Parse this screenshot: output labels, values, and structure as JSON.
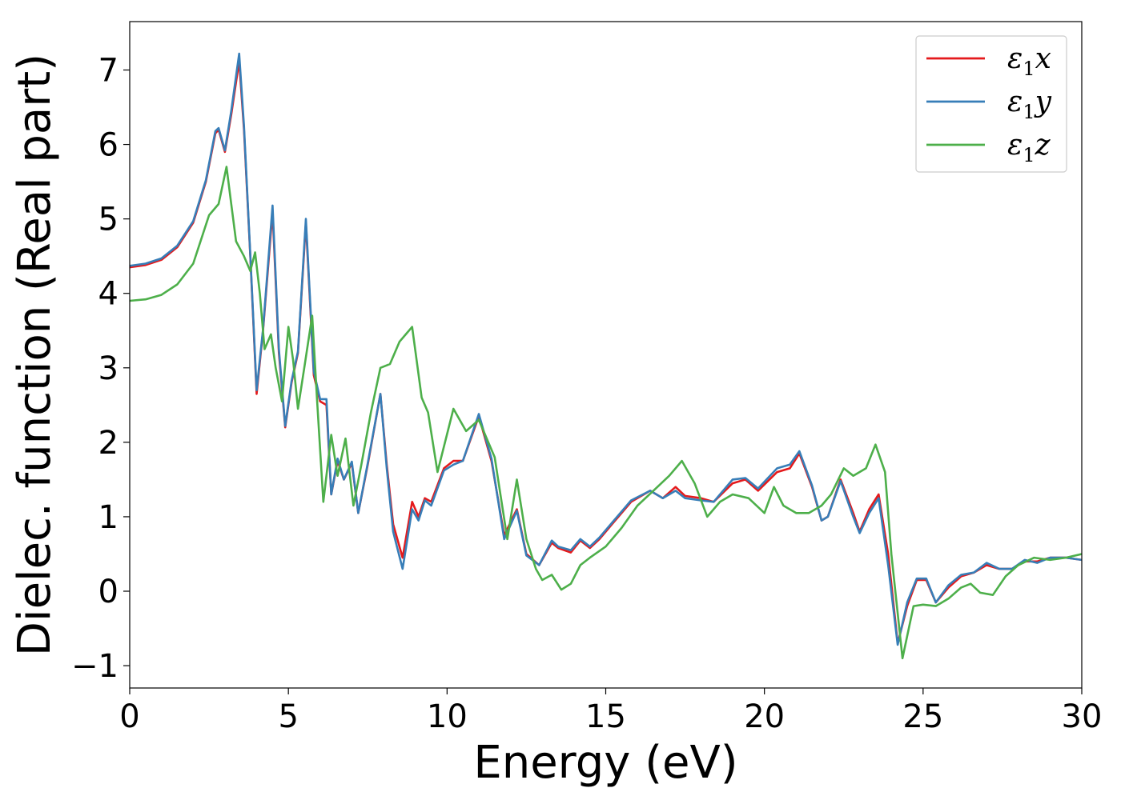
{
  "chart_data": {
    "type": "line",
    "title": "",
    "xlabel": "Energy (eV)",
    "ylabel": "Dielec. function (Real part)",
    "xlim": [
      0,
      30
    ],
    "ylim": [
      -1.3,
      7.65
    ],
    "xticks": [
      0,
      5,
      10,
      15,
      20,
      25,
      30
    ],
    "xtick_labels": [
      "0",
      "5",
      "10",
      "15",
      "20",
      "25",
      "30"
    ],
    "yticks": [
      -1,
      0,
      1,
      2,
      3,
      4,
      5,
      6,
      7
    ],
    "ytick_labels": [
      "−1",
      "0",
      "1",
      "2",
      "3",
      "4",
      "5",
      "6",
      "7"
    ],
    "grid": false,
    "legend_position": "top-right",
    "series": [
      {
        "name": "ε₁x",
        "legend_base": "ε",
        "legend_sub": "1",
        "legend_suffix": "x",
        "color": "#e41a1c",
        "points": [
          [
            0,
            4.35
          ],
          [
            0.5,
            4.38
          ],
          [
            1.0,
            4.45
          ],
          [
            1.5,
            4.62
          ],
          [
            2.0,
            4.95
          ],
          [
            2.4,
            5.5
          ],
          [
            2.7,
            6.15
          ],
          [
            2.8,
            6.2
          ],
          [
            3.0,
            5.9
          ],
          [
            3.2,
            6.4
          ],
          [
            3.45,
            7.12
          ],
          [
            3.6,
            6.2
          ],
          [
            3.8,
            4.5
          ],
          [
            4.0,
            2.65
          ],
          [
            4.2,
            3.5
          ],
          [
            4.5,
            5.1
          ],
          [
            4.7,
            3.2
          ],
          [
            4.9,
            2.2
          ],
          [
            5.1,
            2.8
          ],
          [
            5.3,
            3.2
          ],
          [
            5.55,
            4.95
          ],
          [
            5.8,
            2.9
          ],
          [
            6.0,
            2.55
          ],
          [
            6.2,
            2.5
          ],
          [
            6.35,
            1.3
          ],
          [
            6.55,
            1.75
          ],
          [
            6.75,
            1.5
          ],
          [
            7.0,
            1.72
          ],
          [
            7.2,
            1.05
          ],
          [
            7.5,
            1.7
          ],
          [
            7.9,
            2.65
          ],
          [
            8.1,
            1.7
          ],
          [
            8.3,
            0.9
          ],
          [
            8.6,
            0.45
          ],
          [
            8.9,
            1.2
          ],
          [
            9.1,
            1.0
          ],
          [
            9.3,
            1.25
          ],
          [
            9.5,
            1.2
          ],
          [
            9.9,
            1.65
          ],
          [
            10.2,
            1.75
          ],
          [
            10.5,
            1.75
          ],
          [
            11.0,
            2.35
          ],
          [
            11.4,
            1.75
          ],
          [
            11.8,
            0.75
          ],
          [
            12.2,
            1.1
          ],
          [
            12.5,
            0.5
          ],
          [
            12.9,
            0.35
          ],
          [
            13.3,
            0.65
          ],
          [
            13.5,
            0.58
          ],
          [
            13.9,
            0.52
          ],
          [
            14.2,
            0.68
          ],
          [
            14.5,
            0.58
          ],
          [
            14.8,
            0.7
          ],
          [
            15.2,
            0.9
          ],
          [
            15.8,
            1.2
          ],
          [
            16.4,
            1.35
          ],
          [
            16.8,
            1.25
          ],
          [
            17.2,
            1.4
          ],
          [
            17.5,
            1.28
          ],
          [
            18.0,
            1.25
          ],
          [
            18.4,
            1.2
          ],
          [
            19.0,
            1.45
          ],
          [
            19.4,
            1.5
          ],
          [
            19.8,
            1.35
          ],
          [
            20.4,
            1.6
          ],
          [
            20.8,
            1.65
          ],
          [
            21.1,
            1.85
          ],
          [
            21.5,
            1.4
          ],
          [
            21.8,
            0.95
          ],
          [
            22.0,
            1.0
          ],
          [
            22.4,
            1.5
          ],
          [
            22.8,
            1.05
          ],
          [
            23.0,
            0.8
          ],
          [
            23.3,
            1.1
          ],
          [
            23.6,
            1.3
          ],
          [
            23.9,
            0.5
          ],
          [
            24.2,
            -0.7
          ],
          [
            24.5,
            -0.2
          ],
          [
            24.8,
            0.15
          ],
          [
            25.1,
            0.15
          ],
          [
            25.4,
            -0.15
          ],
          [
            25.8,
            0.05
          ],
          [
            26.2,
            0.2
          ],
          [
            26.6,
            0.25
          ],
          [
            27.0,
            0.35
          ],
          [
            27.4,
            0.3
          ],
          [
            27.8,
            0.3
          ],
          [
            28.2,
            0.4
          ],
          [
            28.6,
            0.4
          ],
          [
            29.0,
            0.45
          ],
          [
            29.5,
            0.45
          ],
          [
            30.0,
            0.42
          ]
        ]
      },
      {
        "name": "ε₁y",
        "legend_base": "ε",
        "legend_sub": "1",
        "legend_suffix": "y",
        "color": "#377eb8",
        "points": [
          [
            0,
            4.37
          ],
          [
            0.5,
            4.4
          ],
          [
            1.0,
            4.47
          ],
          [
            1.5,
            4.64
          ],
          [
            2.0,
            4.97
          ],
          [
            2.4,
            5.52
          ],
          [
            2.7,
            6.18
          ],
          [
            2.8,
            6.22
          ],
          [
            3.0,
            5.92
          ],
          [
            3.2,
            6.45
          ],
          [
            3.45,
            7.22
          ],
          [
            3.6,
            6.25
          ],
          [
            3.8,
            4.52
          ],
          [
            4.0,
            2.7
          ],
          [
            4.2,
            3.52
          ],
          [
            4.5,
            5.18
          ],
          [
            4.7,
            3.25
          ],
          [
            4.9,
            2.22
          ],
          [
            5.1,
            2.82
          ],
          [
            5.3,
            3.22
          ],
          [
            5.55,
            5.0
          ],
          [
            5.8,
            2.95
          ],
          [
            6.0,
            2.58
          ],
          [
            6.2,
            2.58
          ],
          [
            6.35,
            1.3
          ],
          [
            6.55,
            1.78
          ],
          [
            6.75,
            1.5
          ],
          [
            7.0,
            1.74
          ],
          [
            7.2,
            1.05
          ],
          [
            7.5,
            1.72
          ],
          [
            7.9,
            2.65
          ],
          [
            8.1,
            1.65
          ],
          [
            8.3,
            0.8
          ],
          [
            8.6,
            0.3
          ],
          [
            8.9,
            1.1
          ],
          [
            9.1,
            0.95
          ],
          [
            9.3,
            1.22
          ],
          [
            9.5,
            1.15
          ],
          [
            9.9,
            1.62
          ],
          [
            10.2,
            1.7
          ],
          [
            10.5,
            1.75
          ],
          [
            11.0,
            2.38
          ],
          [
            11.4,
            1.78
          ],
          [
            11.8,
            0.7
          ],
          [
            12.2,
            1.08
          ],
          [
            12.5,
            0.48
          ],
          [
            12.9,
            0.35
          ],
          [
            13.3,
            0.68
          ],
          [
            13.5,
            0.6
          ],
          [
            13.9,
            0.55
          ],
          [
            14.2,
            0.7
          ],
          [
            14.5,
            0.6
          ],
          [
            14.8,
            0.72
          ],
          [
            15.2,
            0.92
          ],
          [
            15.8,
            1.22
          ],
          [
            16.4,
            1.35
          ],
          [
            16.8,
            1.25
          ],
          [
            17.2,
            1.35
          ],
          [
            17.5,
            1.25
          ],
          [
            18.0,
            1.22
          ],
          [
            18.4,
            1.2
          ],
          [
            19.0,
            1.5
          ],
          [
            19.4,
            1.52
          ],
          [
            19.8,
            1.38
          ],
          [
            20.4,
            1.65
          ],
          [
            20.8,
            1.7
          ],
          [
            21.1,
            1.88
          ],
          [
            21.5,
            1.42
          ],
          [
            21.8,
            0.95
          ],
          [
            22.0,
            1.0
          ],
          [
            22.4,
            1.48
          ],
          [
            22.8,
            1.0
          ],
          [
            23.0,
            0.78
          ],
          [
            23.3,
            1.05
          ],
          [
            23.6,
            1.25
          ],
          [
            23.9,
            0.35
          ],
          [
            24.2,
            -0.72
          ],
          [
            24.5,
            -0.15
          ],
          [
            24.8,
            0.17
          ],
          [
            25.1,
            0.17
          ],
          [
            25.4,
            -0.15
          ],
          [
            25.8,
            0.08
          ],
          [
            26.2,
            0.22
          ],
          [
            26.6,
            0.25
          ],
          [
            27.0,
            0.38
          ],
          [
            27.4,
            0.3
          ],
          [
            27.8,
            0.3
          ],
          [
            28.2,
            0.42
          ],
          [
            28.6,
            0.38
          ],
          [
            29.0,
            0.45
          ],
          [
            29.5,
            0.45
          ],
          [
            30.0,
            0.42
          ]
        ]
      },
      {
        "name": "ε₁z",
        "legend_base": "ε",
        "legend_sub": "1",
        "legend_suffix": "z",
        "color": "#4daf4a",
        "points": [
          [
            0,
            3.9
          ],
          [
            0.5,
            3.92
          ],
          [
            1.0,
            3.98
          ],
          [
            1.5,
            4.12
          ],
          [
            2.0,
            4.4
          ],
          [
            2.5,
            5.05
          ],
          [
            2.8,
            5.2
          ],
          [
            3.05,
            5.7
          ],
          [
            3.2,
            5.2
          ],
          [
            3.35,
            4.7
          ],
          [
            3.6,
            4.5
          ],
          [
            3.8,
            4.3
          ],
          [
            3.95,
            4.55
          ],
          [
            4.1,
            4.0
          ],
          [
            4.25,
            3.25
          ],
          [
            4.45,
            3.45
          ],
          [
            4.6,
            3.0
          ],
          [
            4.8,
            2.55
          ],
          [
            5.0,
            3.55
          ],
          [
            5.15,
            3.1
          ],
          [
            5.3,
            2.45
          ],
          [
            5.5,
            3.0
          ],
          [
            5.75,
            3.7
          ],
          [
            5.9,
            2.6
          ],
          [
            6.1,
            1.2
          ],
          [
            6.35,
            2.1
          ],
          [
            6.55,
            1.55
          ],
          [
            6.8,
            2.05
          ],
          [
            7.05,
            1.15
          ],
          [
            7.3,
            1.7
          ],
          [
            7.6,
            2.4
          ],
          [
            7.9,
            3.0
          ],
          [
            8.2,
            3.05
          ],
          [
            8.5,
            3.35
          ],
          [
            8.7,
            3.45
          ],
          [
            8.9,
            3.55
          ],
          [
            9.2,
            2.6
          ],
          [
            9.4,
            2.4
          ],
          [
            9.7,
            1.6
          ],
          [
            10.2,
            2.45
          ],
          [
            10.6,
            2.15
          ],
          [
            11.0,
            2.3
          ],
          [
            11.5,
            1.8
          ],
          [
            11.9,
            0.7
          ],
          [
            12.2,
            1.5
          ],
          [
            12.5,
            0.7
          ],
          [
            12.8,
            0.3
          ],
          [
            13.0,
            0.15
          ],
          [
            13.3,
            0.22
          ],
          [
            13.6,
            0.02
          ],
          [
            13.9,
            0.1
          ],
          [
            14.2,
            0.35
          ],
          [
            14.5,
            0.45
          ],
          [
            15.0,
            0.6
          ],
          [
            15.5,
            0.85
          ],
          [
            16.0,
            1.15
          ],
          [
            16.5,
            1.35
          ],
          [
            17.0,
            1.55
          ],
          [
            17.4,
            1.75
          ],
          [
            17.8,
            1.45
          ],
          [
            18.2,
            1.0
          ],
          [
            18.6,
            1.2
          ],
          [
            19.0,
            1.3
          ],
          [
            19.5,
            1.25
          ],
          [
            20.0,
            1.05
          ],
          [
            20.3,
            1.4
          ],
          [
            20.6,
            1.15
          ],
          [
            21.0,
            1.05
          ],
          [
            21.4,
            1.05
          ],
          [
            21.8,
            1.15
          ],
          [
            22.1,
            1.3
          ],
          [
            22.5,
            1.65
          ],
          [
            22.8,
            1.55
          ],
          [
            23.2,
            1.65
          ],
          [
            23.5,
            1.97
          ],
          [
            23.8,
            1.6
          ],
          [
            24.0,
            0.5
          ],
          [
            24.35,
            -0.9
          ],
          [
            24.7,
            -0.2
          ],
          [
            25.0,
            -0.18
          ],
          [
            25.4,
            -0.2
          ],
          [
            25.8,
            -0.1
          ],
          [
            26.2,
            0.05
          ],
          [
            26.5,
            0.1
          ],
          [
            26.8,
            -0.02
          ],
          [
            27.2,
            -0.05
          ],
          [
            27.6,
            0.2
          ],
          [
            28.0,
            0.35
          ],
          [
            28.5,
            0.45
          ],
          [
            29.0,
            0.42
          ],
          [
            29.5,
            0.45
          ],
          [
            30.0,
            0.5
          ]
        ]
      }
    ]
  }
}
